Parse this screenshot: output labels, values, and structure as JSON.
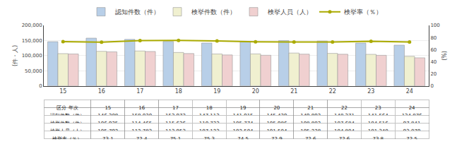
{
  "chart_data": {
    "type": "bar",
    "categories": [
      "15",
      "16",
      "17",
      "18",
      "19",
      "20",
      "21",
      "22",
      "23",
      "24"
    ],
    "series": [
      {
        "name": "認知件数（件）",
        "type": "bar",
        "color": "#b8cfe8",
        "values": [
          146308,
          158020,
          153972,
          147113,
          141915,
          145429,
          149892,
          148371,
          141564,
          134876
        ]
      },
      {
        "name": "検挙件数（件）",
        "type": "bar",
        "color": "#f0f0d0",
        "values": [
          106925,
          114465,
          115636,
          110723,
          105774,
          105986,
          108802,
          107684,
          104516,
          97841
        ]
      },
      {
        "name": "検挙人員（人）",
        "type": "bar",
        "color": "#f0d0d0",
        "values": [
          105792,
          112783,
          113953,
          107123,
          102504,
          101504,
          105228,
          104804,
          101340,
          93079
        ]
      },
      {
        "name": "検挙率（％）",
        "type": "line",
        "axis": "y2",
        "color": "#aaaa00",
        "marker": "circle",
        "values": [
          73.1,
          72.4,
          75.1,
          75.3,
          74.5,
          72.9,
          72.6,
          72.6,
          73.8,
          72.5
        ]
      }
    ],
    "ylabel": "(件・人)",
    "y2label": "(%)",
    "ylim": [
      0,
      200000
    ],
    "yticks": [
      0,
      {
        "value": 50000,
        "label": "50,000"
      },
      {
        "value": 100000,
        "label": "100,000"
      },
      {
        "value": 150000,
        "label": "150,000"
      },
      {
        "value": 200000,
        "label": "200,000"
      }
    ],
    "y2lim": [
      0,
      100
    ],
    "y2ticks": [
      0,
      20,
      40,
      60,
      80,
      100
    ],
    "grid": true,
    "legend": "top",
    "table": {
      "header": [
        "区分",
        "年次"
      ],
      "rows": [
        {
          "label": "認知件数（件）",
          "value_labels": [
            "146,308",
            "158,020",
            "153,972",
            "147,113",
            "141,915",
            "145,429",
            "149,892",
            "148,371",
            "141,564",
            "134,876"
          ]
        },
        {
          "label": "検挙件数（件）",
          "value_labels": [
            "106,925",
            "114,465",
            "115,636",
            "110,723",
            "105,774",
            "105,986",
            "108,802",
            "107,684",
            "104,516",
            "97,841"
          ]
        },
        {
          "label": "検挙人員（人）",
          "value_labels": [
            "105,792",
            "112,783",
            "113,953",
            "107,123",
            "102,504",
            "101,504",
            "105,228",
            "104,804",
            "101,340",
            "93,079"
          ]
        },
        {
          "label": "検挙率（％）",
          "value_labels": [
            "73.1",
            "72.4",
            "75.1",
            "75.3",
            "74.5",
            "72.9",
            "72.6",
            "72.6",
            "73.8",
            "72.5"
          ]
        }
      ]
    }
  }
}
